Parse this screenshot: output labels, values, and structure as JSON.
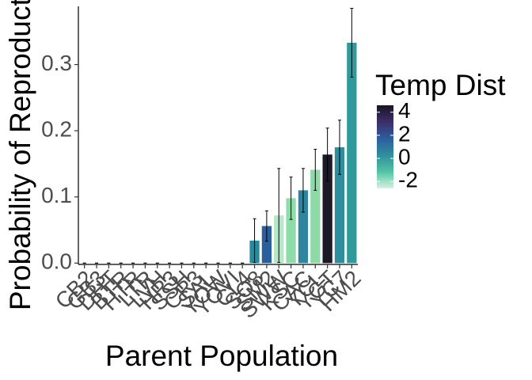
{
  "chart_data": {
    "type": "bar",
    "categories": [
      "CB2",
      "GB3",
      "DHT",
      "BTR",
      "HTR",
      "LTR",
      "LVH",
      "HR3",
      "SSH",
      "CR3",
      "SAL",
      "YOW",
      "YOVI",
      "CL4",
      "SO8",
      "SM2",
      "SWW",
      "KSC",
      "CAC",
      "YCL",
      "YGT",
      "YC7",
      "HM2"
    ],
    "values": [
      0,
      0,
      0,
      0,
      0,
      0,
      0,
      0,
      0,
      0,
      0,
      0,
      0,
      0,
      0.034,
      0.056,
      0.072,
      0.098,
      0.11,
      0.141,
      0.164,
      0.175,
      0.333
    ],
    "errors": [
      0,
      0,
      0,
      0,
      0,
      0,
      0,
      0,
      0,
      0,
      0,
      0,
      0,
      0,
      0.033,
      0.023,
      0.071,
      0.032,
      0.033,
      0.031,
      0.04,
      0.041,
      0.052
    ],
    "colors": [
      "#2f8f9d",
      "#2f8f9d",
      "#2f8f9d",
      "#2f8f9d",
      "#2f8f9d",
      "#2f8f9d",
      "#2f8f9d",
      "#2f8f9d",
      "#2f8f9d",
      "#2f8f9d",
      "#2f8f9d",
      "#2f8f9d",
      "#2f8f9d",
      "#2f8f9d",
      "#2a8a9a",
      "#2a5f9b",
      "#b5e8c6",
      "#8fdcab",
      "#2f85a0",
      "#8ed9a8",
      "#1d1826",
      "#2f8e9e",
      "#2e9a9c"
    ],
    "x_label": "Parent Population",
    "y_label": "Probability of Reproduction",
    "ylim": [
      -0.002,
      0.388
    ],
    "yticks": [
      {
        "value": 0,
        "label": "0.0"
      },
      0.1,
      0.2,
      0.3
    ],
    "legend_title": "Temp Dist",
    "colorbar_lim": [
      -2.6,
      4.6
    ],
    "colorbar_ticks": [
      4,
      2,
      0,
      -2
    ],
    "colorbar_colors": [
      "#d7f2e0",
      "#52c4a4",
      "#2f8f9d",
      "#2d5e9e",
      "#3c2e6b",
      "#1b1420"
    ]
  }
}
